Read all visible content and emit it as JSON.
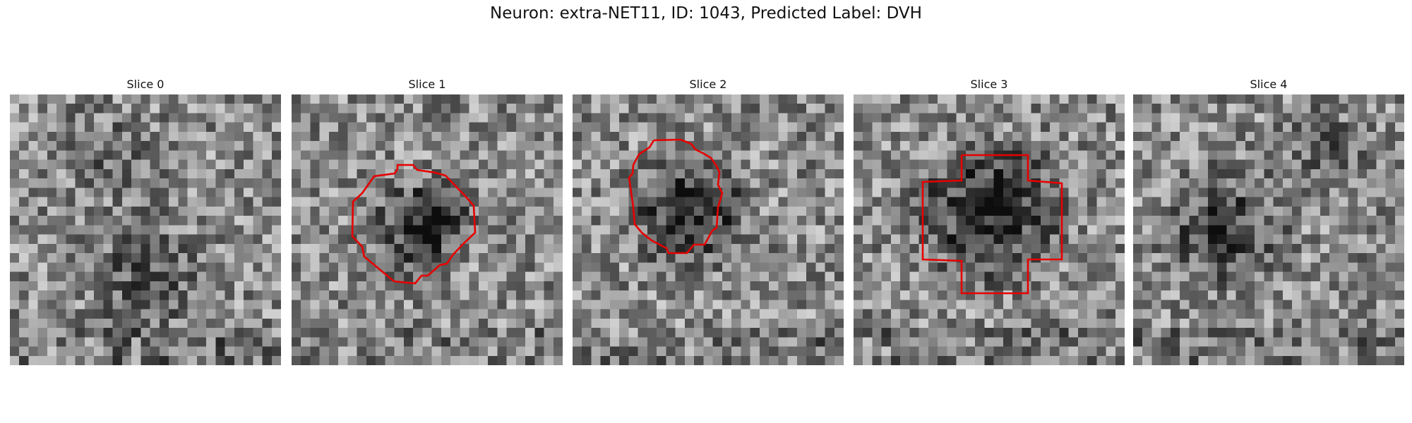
{
  "figure": {
    "title": "Neuron: extra-NET11, ID: 1043, Predicted Label: DVH"
  },
  "colors": {
    "contour": "#e60000",
    "background": "#ffffff",
    "text": "#111111"
  },
  "panels": [
    {
      "title": "Slice 0",
      "has_contour": false
    },
    {
      "title": "Slice 1",
      "has_contour": true
    },
    {
      "title": "Slice 2",
      "has_contour": true
    },
    {
      "title": "Slice 3",
      "has_contour": true
    },
    {
      "title": "Slice 4",
      "has_contour": false
    }
  ],
  "image": {
    "grid_size": 29,
    "colormap": "gray",
    "content": "grayscale microscopy patch"
  }
}
